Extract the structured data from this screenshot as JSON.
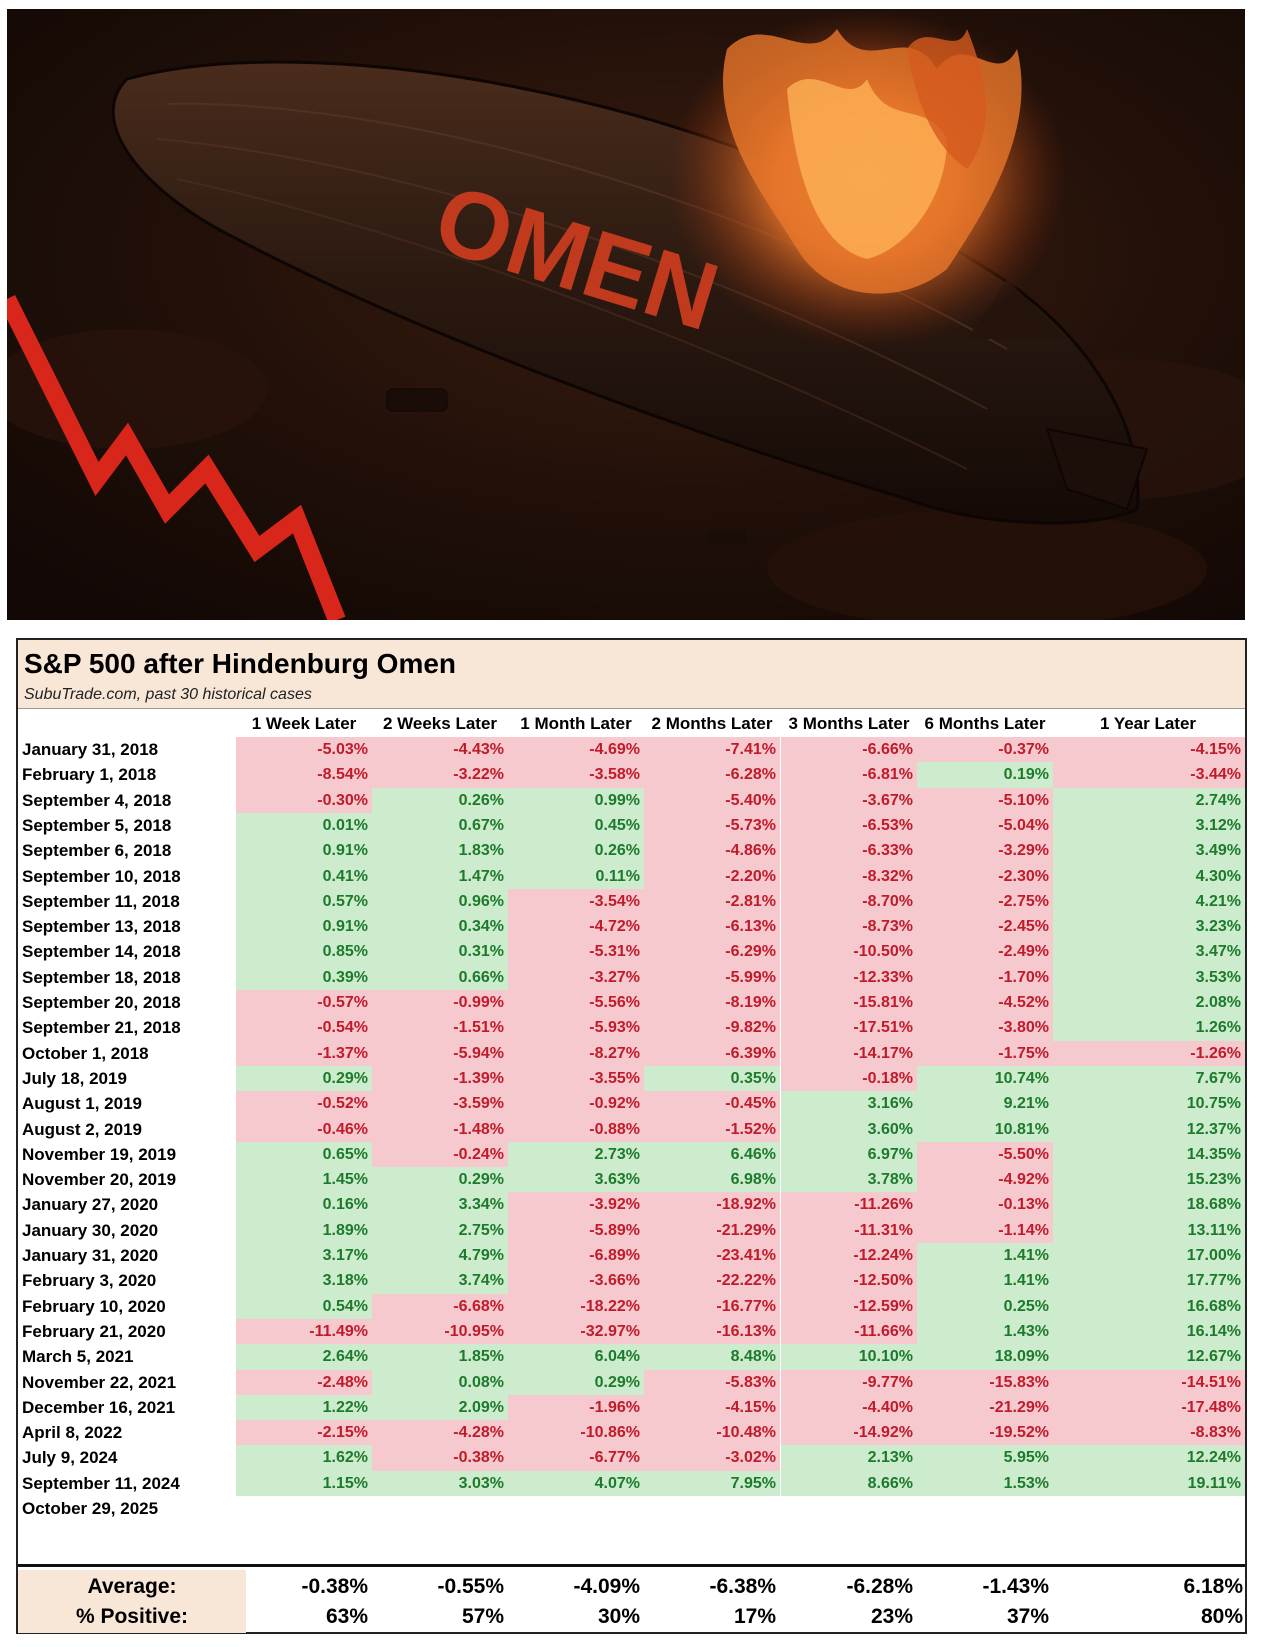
{
  "hero": {
    "airship_text": "OMEN",
    "colors": {
      "sky": "#1b0d08",
      "hull": "#2a1a12",
      "flame": "#e8772a",
      "arrow": "#d8261a",
      "lettering": "#c23a1e"
    }
  },
  "table": {
    "title": "S&P 500 after Hindenburg Omen",
    "subtitle": "SubuTrade.com, past 30 historical cases",
    "columns": [
      "1 Week Later",
      "2 Weeks Later",
      "1 Month Later",
      "2 Months Later",
      "3 Months Later",
      "6 Months Later",
      "1 Year Later"
    ],
    "rows": [
      {
        "date": "January 31, 2018",
        "values": [
          "-5.03%",
          "-4.43%",
          "-4.69%",
          "-7.41%",
          "-6.66%",
          "-0.37%",
          "-4.15%"
        ]
      },
      {
        "date": "February 1, 2018",
        "values": [
          "-8.54%",
          "-3.22%",
          "-3.58%",
          "-6.28%",
          "-6.81%",
          "0.19%",
          "-3.44%"
        ]
      },
      {
        "date": "September 4, 2018",
        "values": [
          "-0.30%",
          "0.26%",
          "0.99%",
          "-5.40%",
          "-3.67%",
          "-5.10%",
          "2.74%"
        ]
      },
      {
        "date": "September 5, 2018",
        "values": [
          "0.01%",
          "0.67%",
          "0.45%",
          "-5.73%",
          "-6.53%",
          "-5.04%",
          "3.12%"
        ]
      },
      {
        "date": "September 6, 2018",
        "values": [
          "0.91%",
          "1.83%",
          "0.26%",
          "-4.86%",
          "-6.33%",
          "-3.29%",
          "3.49%"
        ]
      },
      {
        "date": "September 10, 2018",
        "values": [
          "0.41%",
          "1.47%",
          "0.11%",
          "-2.20%",
          "-8.32%",
          "-2.30%",
          "4.30%"
        ]
      },
      {
        "date": "September 11, 2018",
        "values": [
          "0.57%",
          "0.96%",
          "-3.54%",
          "-2.81%",
          "-8.70%",
          "-2.75%",
          "4.21%"
        ]
      },
      {
        "date": "September 13, 2018",
        "values": [
          "0.91%",
          "0.34%",
          "-4.72%",
          "-6.13%",
          "-8.73%",
          "-2.45%",
          "3.23%"
        ]
      },
      {
        "date": "September 14, 2018",
        "values": [
          "0.85%",
          "0.31%",
          "-5.31%",
          "-6.29%",
          "-10.50%",
          "-2.49%",
          "3.47%"
        ]
      },
      {
        "date": "September 18, 2018",
        "values": [
          "0.39%",
          "0.66%",
          "-3.27%",
          "-5.99%",
          "-12.33%",
          "-1.70%",
          "3.53%"
        ]
      },
      {
        "date": "September 20, 2018",
        "values": [
          "-0.57%",
          "-0.99%",
          "-5.56%",
          "-8.19%",
          "-15.81%",
          "-4.52%",
          "2.08%"
        ]
      },
      {
        "date": "September 21, 2018",
        "values": [
          "-0.54%",
          "-1.51%",
          "-5.93%",
          "-9.82%",
          "-17.51%",
          "-3.80%",
          "1.26%"
        ]
      },
      {
        "date": "October 1, 2018",
        "values": [
          "-1.37%",
          "-5.94%",
          "-8.27%",
          "-6.39%",
          "-14.17%",
          "-1.75%",
          "-1.26%"
        ]
      },
      {
        "date": "July 18, 2019",
        "values": [
          "0.29%",
          "-1.39%",
          "-3.55%",
          "0.35%",
          "-0.18%",
          "10.74%",
          "7.67%"
        ]
      },
      {
        "date": "August 1, 2019",
        "values": [
          "-0.52%",
          "-3.59%",
          "-0.92%",
          "-0.45%",
          "3.16%",
          "9.21%",
          "10.75%"
        ]
      },
      {
        "date": "August 2, 2019",
        "values": [
          "-0.46%",
          "-1.48%",
          "-0.88%",
          "-1.52%",
          "3.60%",
          "10.81%",
          "12.37%"
        ]
      },
      {
        "date": "November 19, 2019",
        "values": [
          "0.65%",
          "-0.24%",
          "2.73%",
          "6.46%",
          "6.97%",
          "-5.50%",
          "14.35%"
        ]
      },
      {
        "date": "November 20, 2019",
        "values": [
          "1.45%",
          "0.29%",
          "3.63%",
          "6.98%",
          "3.78%",
          "-4.92%",
          "15.23%"
        ]
      },
      {
        "date": "January 27, 2020",
        "values": [
          "0.16%",
          "3.34%",
          "-3.92%",
          "-18.92%",
          "-11.26%",
          "-0.13%",
          "18.68%"
        ]
      },
      {
        "date": "January 30, 2020",
        "values": [
          "1.89%",
          "2.75%",
          "-5.89%",
          "-21.29%",
          "-11.31%",
          "-1.14%",
          "13.11%"
        ]
      },
      {
        "date": "January 31, 2020",
        "values": [
          "3.17%",
          "4.79%",
          "-6.89%",
          "-23.41%",
          "-12.24%",
          "1.41%",
          "17.00%"
        ]
      },
      {
        "date": "February 3, 2020",
        "values": [
          "3.18%",
          "3.74%",
          "-3.66%",
          "-22.22%",
          "-12.50%",
          "1.41%",
          "17.77%"
        ]
      },
      {
        "date": "February 10, 2020",
        "values": [
          "0.54%",
          "-6.68%",
          "-18.22%",
          "-16.77%",
          "-12.59%",
          "0.25%",
          "16.68%"
        ]
      },
      {
        "date": "February 21, 2020",
        "values": [
          "-11.49%",
          "-10.95%",
          "-32.97%",
          "-16.13%",
          "-11.66%",
          "1.43%",
          "16.14%"
        ]
      },
      {
        "date": "March 5, 2021",
        "values": [
          "2.64%",
          "1.85%",
          "6.04%",
          "8.48%",
          "10.10%",
          "18.09%",
          "12.67%"
        ]
      },
      {
        "date": "November 22, 2021",
        "values": [
          "-2.48%",
          "0.08%",
          "0.29%",
          "-5.83%",
          "-9.77%",
          "-15.83%",
          "-14.51%"
        ]
      },
      {
        "date": "December 16, 2021",
        "values": [
          "1.22%",
          "2.09%",
          "-1.96%",
          "-4.15%",
          "-4.40%",
          "-21.29%",
          "-17.48%"
        ]
      },
      {
        "date": "April 8, 2022",
        "values": [
          "-2.15%",
          "-4.28%",
          "-10.86%",
          "-10.48%",
          "-14.92%",
          "-19.52%",
          "-8.83%"
        ]
      },
      {
        "date": "July 9, 2024",
        "values": [
          "1.62%",
          "-0.38%",
          "-6.77%",
          "-3.02%",
          "2.13%",
          "5.95%",
          "12.24%"
        ]
      },
      {
        "date": "September 11, 2024",
        "values": [
          "1.15%",
          "3.03%",
          "4.07%",
          "7.95%",
          "8.66%",
          "1.53%",
          "19.11%"
        ]
      },
      {
        "date": "October 29, 2025",
        "values": []
      }
    ],
    "average": {
      "label": "Average:",
      "values": [
        "-0.38%",
        "-0.55%",
        "-4.09%",
        "-6.38%",
        "-6.28%",
        "-1.43%",
        "6.18%"
      ]
    },
    "positive": {
      "label": "% Positive:",
      "values": [
        "63%",
        "57%",
        "30%",
        "17%",
        "23%",
        "37%",
        "80%"
      ]
    },
    "colors": {
      "positive_bg": "#cdeccd",
      "positive_text": "#1d7a2d",
      "negative_bg": "#f6c9cf",
      "negative_text": "#c01b2a",
      "header_bg": "#f8e6d6"
    }
  }
}
